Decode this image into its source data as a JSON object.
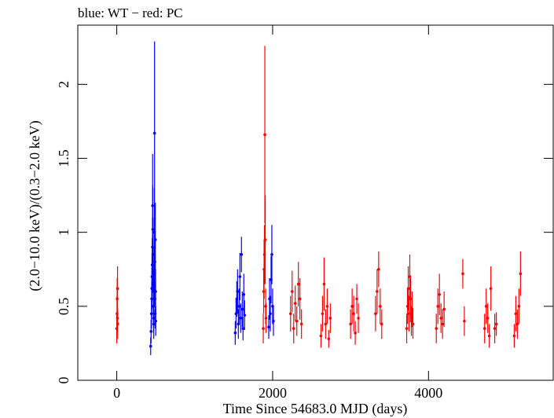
{
  "chart_data": {
    "type": "scatter",
    "title": "blue: WT − red: PC",
    "xlabel": "Time Since 54683.0 MJD (days)",
    "ylabel": "(2.0−10.0 keV)/(0.3−2.0 keV)",
    "xlim": [
      -500,
      5600
    ],
    "ylim": [
      0,
      2.4
    ],
    "xticks": [
      {
        "v": 0,
        "label": "0"
      },
      {
        "v": 2000,
        "label": "2000"
      },
      {
        "v": 4000,
        "label": "4000"
      }
    ],
    "yticks": [
      {
        "v": 0,
        "label": "0"
      },
      {
        "v": 0.5,
        "label": "0.5"
      },
      {
        "v": 1,
        "label": "1"
      },
      {
        "v": 1.5,
        "label": "1.5"
      },
      {
        "v": 2,
        "label": "2"
      }
    ],
    "series": [
      {
        "name": "WT",
        "color": "#0000ff",
        "points": [
          [
            435,
            0.23,
            0.06
          ],
          [
            440,
            0.33,
            0.08
          ],
          [
            445,
            0.45,
            0.1
          ],
          [
            448,
            0.55,
            0.12
          ],
          [
            450,
            0.62,
            0.14
          ],
          [
            452,
            0.7,
            0.16
          ],
          [
            455,
            0.78,
            0.18
          ],
          [
            458,
            0.9,
            0.2
          ],
          [
            460,
            1.18,
            0.35
          ],
          [
            462,
            1.02,
            0.3
          ],
          [
            465,
            0.85,
            0.25
          ],
          [
            468,
            0.6,
            0.15
          ],
          [
            470,
            0.5,
            0.12
          ],
          [
            472,
            0.42,
            0.1
          ],
          [
            475,
            0.38,
            0.1
          ],
          [
            478,
            0.65,
            0.15
          ],
          [
            480,
            0.72,
            0.18
          ],
          [
            482,
            1.0,
            0.3
          ],
          [
            485,
            1.67,
            0.62
          ],
          [
            488,
            0.8,
            0.2
          ],
          [
            490,
            0.55,
            0.14
          ],
          [
            492,
            0.45,
            0.1
          ],
          [
            495,
            0.95,
            0.25
          ],
          [
            498,
            0.6,
            0.15
          ],
          [
            500,
            0.4,
            0.1
          ],
          [
            1520,
            0.32,
            0.08
          ],
          [
            1530,
            0.45,
            0.1
          ],
          [
            1540,
            0.55,
            0.12
          ],
          [
            1550,
            0.6,
            0.15
          ],
          [
            1560,
            0.38,
            0.1
          ],
          [
            1570,
            0.5,
            0.12
          ],
          [
            1580,
            0.7,
            0.16
          ],
          [
            1590,
            0.42,
            0.1
          ],
          [
            1600,
            0.85,
            0.12
          ],
          [
            1610,
            0.48,
            0.12
          ],
          [
            1620,
            0.35,
            0.08
          ],
          [
            1630,
            0.58,
            0.14
          ],
          [
            1640,
            0.44,
            0.1
          ],
          [
            1950,
            0.36,
            0.08
          ],
          [
            1960,
            0.55,
            0.14
          ],
          [
            1970,
            0.45,
            0.12
          ],
          [
            1980,
            0.68,
            0.16
          ],
          [
            1990,
            0.85,
            0.2
          ],
          [
            2000,
            0.5,
            0.12
          ],
          [
            2010,
            0.4,
            0.1
          ]
        ]
      },
      {
        "name": "PC",
        "color": "#ff0000",
        "points": [
          [
            0,
            0.35,
            0.1
          ],
          [
            3,
            0.45,
            0.12
          ],
          [
            5,
            0.55,
            0.14
          ],
          [
            8,
            0.42,
            0.1
          ],
          [
            10,
            0.62,
            0.15
          ],
          [
            12,
            0.38,
            0.1
          ],
          [
            1880,
            0.35,
            0.1
          ],
          [
            1885,
            0.6,
            0.15
          ],
          [
            1890,
            0.75,
            0.2
          ],
          [
            1895,
            0.85,
            0.2
          ],
          [
            1900,
            1.66,
            0.6
          ],
          [
            1905,
            0.95,
            0.3
          ],
          [
            1910,
            0.5,
            0.12
          ],
          [
            1915,
            0.42,
            0.1
          ],
          [
            2230,
            0.45,
            0.12
          ],
          [
            2250,
            0.6,
            0.14
          ],
          [
            2270,
            0.35,
            0.1
          ],
          [
            2290,
            0.52,
            0.12
          ],
          [
            2310,
            0.4,
            0.1
          ],
          [
            2330,
            0.65,
            0.15
          ],
          [
            2350,
            0.55,
            0.14
          ],
          [
            2370,
            0.38,
            0.1
          ],
          [
            2620,
            0.3,
            0.08
          ],
          [
            2640,
            0.45,
            0.12
          ],
          [
            2660,
            0.65,
            0.18
          ],
          [
            2680,
            0.38,
            0.1
          ],
          [
            2700,
            0.5,
            0.12
          ],
          [
            2720,
            0.28,
            0.06
          ],
          [
            2740,
            0.42,
            0.1
          ],
          [
            3000,
            0.38,
            0.1
          ],
          [
            3020,
            0.5,
            0.12
          ],
          [
            3040,
            0.45,
            0.12
          ],
          [
            3060,
            0.32,
            0.08
          ],
          [
            3080,
            0.55,
            0.1
          ],
          [
            3100,
            0.42,
            0.1
          ],
          [
            3320,
            0.45,
            0.12
          ],
          [
            3340,
            0.6,
            0.15
          ],
          [
            3360,
            0.75,
            0.12
          ],
          [
            3380,
            0.5,
            0.12
          ],
          [
            3400,
            0.38,
            0.1
          ],
          [
            3720,
            0.35,
            0.1
          ],
          [
            3730,
            0.5,
            0.12
          ],
          [
            3740,
            0.62,
            0.15
          ],
          [
            3750,
            0.45,
            0.12
          ],
          [
            3760,
            0.7,
            0.15
          ],
          [
            3770,
            0.55,
            0.14
          ],
          [
            3780,
            0.4,
            0.1
          ],
          [
            3790,
            0.48,
            0.12
          ],
          [
            3800,
            0.38,
            0.1
          ],
          [
            4100,
            0.35,
            0.1
          ],
          [
            4120,
            0.5,
            0.12
          ],
          [
            4140,
            0.58,
            0.14
          ],
          [
            4160,
            0.42,
            0.1
          ],
          [
            4180,
            0.38,
            0.1
          ],
          [
            4200,
            0.48,
            0.12
          ],
          [
            4440,
            0.72,
            0.1
          ],
          [
            4460,
            0.4,
            0.1
          ],
          [
            4720,
            0.35,
            0.1
          ],
          [
            4740,
            0.5,
            0.12
          ],
          [
            4760,
            0.42,
            0.1
          ],
          [
            4780,
            0.3,
            0.08
          ],
          [
            4800,
            0.62,
            0.15
          ],
          [
            4850,
            0.35,
            0.1
          ],
          [
            4870,
            0.38,
            0.08
          ],
          [
            5100,
            0.3,
            0.08
          ],
          [
            5120,
            0.45,
            0.12
          ],
          [
            5140,
            0.38,
            0.1
          ],
          [
            5160,
            0.5,
            0.12
          ],
          [
            5180,
            0.72,
            0.15
          ]
        ]
      }
    ],
    "grid": false,
    "legend": "none"
  }
}
